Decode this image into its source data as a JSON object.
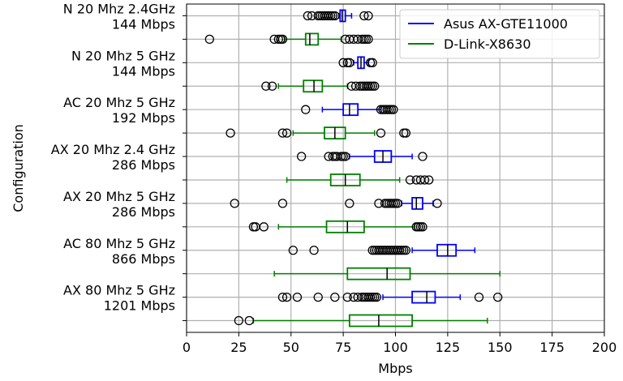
{
  "chart_data": {
    "type": "boxplot",
    "orientation": "horizontal",
    "title": "",
    "xlabel": "Mbps",
    "ylabel": "Configuration",
    "xlim": [
      0,
      200
    ],
    "xticks": [
      0,
      25,
      50,
      75,
      100,
      125,
      150,
      175,
      200
    ],
    "grid": true,
    "legend_position": "top-right",
    "series": [
      {
        "name": "Asus AX-GTE11000",
        "color": "#0000ff"
      },
      {
        "name": "D-Link-X8630",
        "color": "#008000"
      }
    ],
    "categories": [
      {
        "label_line1": "N 20 Mhz 2.4GHz",
        "label_line2": "144 Mbps",
        "boxes": [
          {
            "series": "Asus AX-GTE11000",
            "whisker_low": 73,
            "q1": 73.5,
            "median": 74.5,
            "q3": 76,
            "whisker_high": 79,
            "outliers": [
              58,
              60,
              63,
              64,
              65,
              66,
              67,
              68,
              69,
              70,
              71,
              85,
              87
            ]
          },
          {
            "series": "D-Link-X8630",
            "whisker_low": 47,
            "q1": 57,
            "median": 59,
            "q3": 63,
            "whisker_high": 74,
            "outliers": [
              11,
              42,
              44,
              45,
              46,
              76,
              78,
              80,
              82,
              84,
              85,
              86,
              87
            ]
          }
        ]
      },
      {
        "label_line1": "N 20 Mhz 5 GHz",
        "label_line2": "144 Mbps",
        "boxes": [
          {
            "series": "Asus AX-GTE11000",
            "whisker_low": 80,
            "q1": 82,
            "median": 83.5,
            "q3": 85,
            "whisker_high": 87,
            "outliers": [
              75,
              77,
              78,
              88,
              89
            ]
          },
          {
            "series": "D-Link-X8630",
            "whisker_low": 44,
            "q1": 56,
            "median": 61,
            "q3": 65,
            "whisker_high": 77,
            "outliers": [
              38,
              41,
              79,
              81,
              83,
              84,
              85,
              86,
              87,
              88,
              89,
              90
            ]
          }
        ]
      },
      {
        "label_line1": "AC 20 Mhz 5 GHz",
        "label_line2": "192 Mbps",
        "boxes": [
          {
            "series": "Asus AX-GTE11000",
            "whisker_low": 65,
            "q1": 75,
            "median": 78,
            "q3": 82,
            "whisker_high": 93,
            "outliers": [
              57,
              93,
              94,
              95,
              96,
              97,
              98,
              99
            ]
          },
          {
            "series": "D-Link-X8630",
            "whisker_low": 51,
            "q1": 66,
            "median": 71,
            "q3": 76,
            "whisker_high": 90,
            "outliers": [
              21,
              46,
              48,
              93,
              104,
              105
            ]
          }
        ]
      },
      {
        "label_line1": "AX 20 Mhz 2.4 GHz",
        "label_line2": "286 Mbps",
        "boxes": [
          {
            "series": "Asus AX-GTE11000",
            "whisker_low": 78,
            "q1": 90,
            "median": 94,
            "q3": 98,
            "whisker_high": 108,
            "outliers": [
              55,
              68,
              70,
              71,
              72,
              74,
              75,
              76,
              113
            ]
          },
          {
            "series": "D-Link-X8630",
            "whisker_low": 48,
            "q1": 69,
            "median": 76,
            "q3": 83,
            "whisker_high": 102,
            "outliers": [
              107,
              110,
              112,
              114,
              116
            ]
          }
        ]
      },
      {
        "label_line1": "AX 20 Mhz 5 GHz",
        "label_line2": "286 Mbps",
        "boxes": [
          {
            "series": "Asus AX-GTE11000",
            "whisker_low": 103,
            "q1": 108,
            "median": 110,
            "q3": 113,
            "whisker_high": 118,
            "outliers": [
              23,
              46,
              78,
              92,
              95,
              96,
              97,
              98,
              99,
              100,
              101,
              120
            ]
          },
          {
            "series": "D-Link-X8630",
            "whisker_low": 44,
            "q1": 67,
            "median": 77,
            "q3": 85,
            "whisker_high": 109,
            "outliers": [
              32,
              33,
              37,
              110,
              111,
              112,
              113
            ]
          }
        ]
      },
      {
        "label_line1": "AC 80 Mhz 5 GHz",
        "label_line2": "866 Mbps",
        "boxes": [
          {
            "series": "Asus AX-GTE11000",
            "whisker_low": 108,
            "q1": 120,
            "median": 125,
            "q3": 129,
            "whisker_high": 138,
            "outliers": [
              51,
              61,
              89,
              90,
              91,
              92,
              93,
              94,
              95,
              96,
              97,
              98,
              99,
              100,
              101,
              102,
              103,
              104,
              105
            ]
          },
          {
            "series": "D-Link-X8630",
            "whisker_low": 42,
            "q1": 77,
            "median": 96,
            "q3": 107,
            "whisker_high": 150,
            "outliers": []
          }
        ]
      },
      {
        "label_line1": "AX 80 Mhz 5 GHz",
        "label_line2": "1201 Mbps",
        "boxes": [
          {
            "series": "Asus AX-GTE11000",
            "whisker_low": 94,
            "q1": 108,
            "median": 115,
            "q3": 119,
            "whisker_high": 131,
            "outliers": [
              46,
              48,
              53,
              63,
              71,
              77,
              80,
              82,
              84,
              85,
              86,
              87,
              88,
              89,
              90,
              91,
              140,
              149
            ]
          },
          {
            "series": "D-Link-X8630",
            "whisker_low": 32,
            "q1": 78,
            "median": 92,
            "q3": 108,
            "whisker_high": 144,
            "outliers": [
              25,
              30
            ]
          }
        ]
      }
    ]
  }
}
